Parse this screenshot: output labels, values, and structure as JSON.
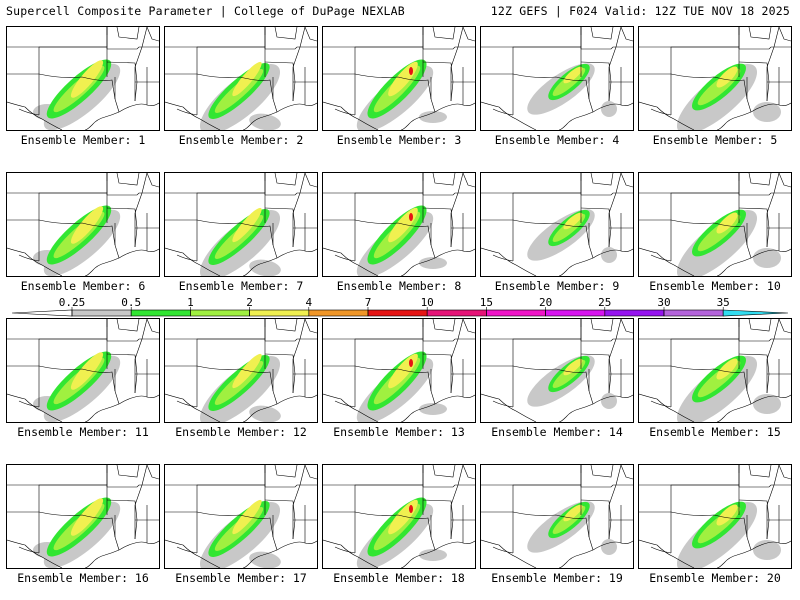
{
  "header": {
    "left_title": "Supercell Composite Parameter | College of DuPage NEXLAB",
    "right_title": "12Z GEFS | F024 Valid: 12Z TUE NOV 18 2025"
  },
  "member_label_prefix": "Ensemble Member:",
  "members": [
    {
      "label": "Ensemble Member: 1"
    },
    {
      "label": "Ensemble Member: 2"
    },
    {
      "label": "Ensemble Member: 3"
    },
    {
      "label": "Ensemble Member: 4"
    },
    {
      "label": "Ensemble Member: 5"
    },
    {
      "label": "Ensemble Member: 6"
    },
    {
      "label": "Ensemble Member: 7"
    },
    {
      "label": "Ensemble Member: 8"
    },
    {
      "label": "Ensemble Member: 9"
    },
    {
      "label": "Ensemble Member: 10"
    },
    {
      "label": "Ensemble Member: 11"
    },
    {
      "label": "Ensemble Member: 12"
    },
    {
      "label": "Ensemble Member: 13"
    },
    {
      "label": "Ensemble Member: 14"
    },
    {
      "label": "Ensemble Member: 15"
    },
    {
      "label": "Ensemble Member: 16"
    },
    {
      "label": "Ensemble Member: 17"
    },
    {
      "label": "Ensemble Member: 18"
    },
    {
      "label": "Ensemble Member: 19"
    },
    {
      "label": "Ensemble Member: 20"
    }
  ],
  "legend": {
    "ticks": [
      "0.25",
      "0.5",
      "1",
      "2",
      "4",
      "7",
      "10",
      "15",
      "20",
      "25",
      "30",
      "35"
    ],
    "colors": [
      "#c8c8c8",
      "#32e632",
      "#a0f040",
      "#f0f050",
      "#f09628",
      "#e61414",
      "#e61478",
      "#f014c8",
      "#d814f0",
      "#9614f0",
      "#b464dc",
      "#32dcf0"
    ],
    "under_color": "#ffffff",
    "over_color": "#32dcf0"
  },
  "colors": {
    "background": "#ffffff",
    "border": "#000000"
  }
}
